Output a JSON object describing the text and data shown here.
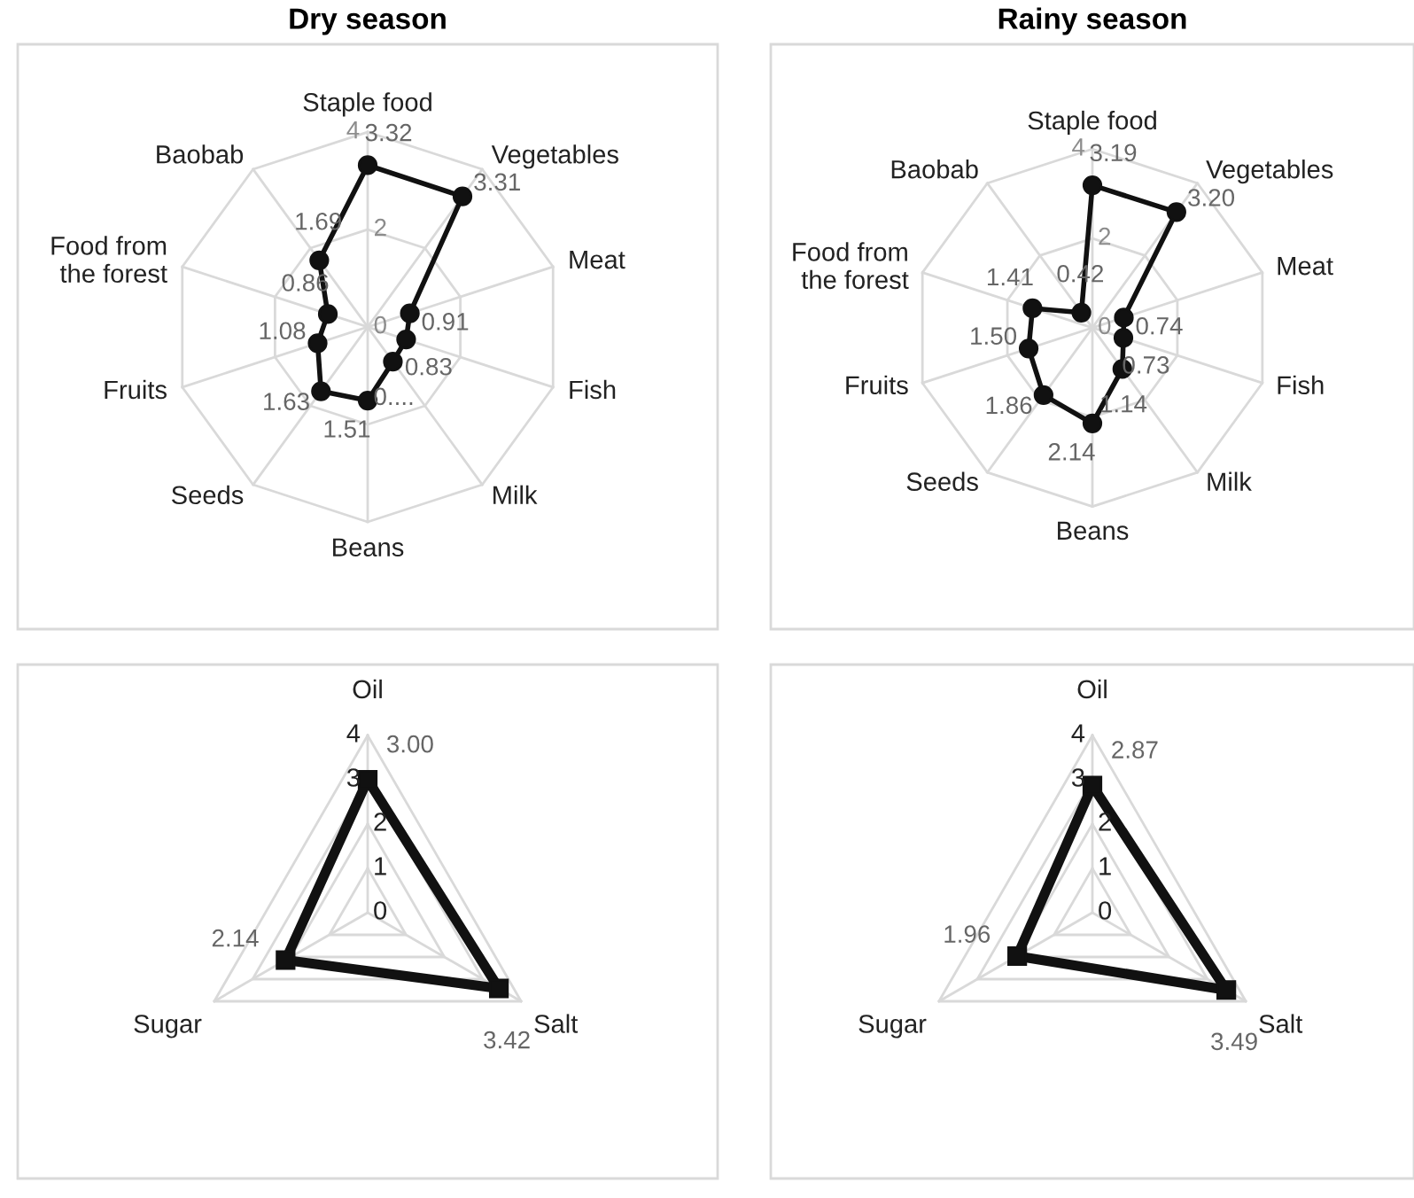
{
  "chart_data": [
    {
      "type": "radar",
      "title": "Dry season",
      "categories": [
        "Staple food",
        "Vegetables",
        "Meat",
        "Fish",
        "Milk",
        "Beans",
        "Seeds",
        "Fruits",
        "Food from\nthe forest",
        "Baobab"
      ],
      "ylim": [
        0,
        4
      ],
      "yticks": [
        0,
        2,
        4
      ],
      "grid": true,
      "series": [
        {
          "color": "#111111",
          "line_style": "solid",
          "marker": "circle",
          "values": [
            3.32,
            3.31,
            0.91,
            0.83,
            0.88,
            1.51,
            1.63,
            1.08,
            0.86,
            1.69
          ],
          "value_labels": [
            "3.32",
            "3.31",
            "0.91",
            "0.83",
            "0....",
            "1.51",
            "1.63",
            "1.08",
            "0.86",
            "1.69"
          ]
        }
      ]
    },
    {
      "type": "radar",
      "title": "Rainy season",
      "categories": [
        "Staple food",
        "Vegetables",
        "Meat",
        "Fish",
        "Milk",
        "Beans",
        "Seeds",
        "Fruits",
        "Food from\nthe forest",
        "Baobab"
      ],
      "ylim": [
        0,
        4
      ],
      "yticks": [
        0,
        2,
        4
      ],
      "grid": true,
      "series": [
        {
          "color": "#111111",
          "line_style": "solid",
          "marker": "circle",
          "values": [
            3.19,
            3.2,
            0.74,
            0.73,
            1.14,
            2.14,
            1.86,
            1.5,
            1.41,
            0.42
          ],
          "value_labels": [
            "3.19",
            "3.20",
            "0.74",
            "0.73",
            "1.14",
            "2.14",
            "1.86",
            "1.50",
            "1.41",
            "0.42"
          ]
        }
      ]
    },
    {
      "type": "radar",
      "categories": [
        "Oil",
        "Salt",
        "Sugar"
      ],
      "ylim": [
        0,
        4
      ],
      "yticks": [
        0,
        1,
        2,
        3,
        4
      ],
      "grid": true,
      "series": [
        {
          "color": "#111111",
          "line_style": "solid",
          "marker": "square",
          "values": [
            3.0,
            3.42,
            2.14
          ],
          "value_labels": [
            "3.00",
            "3.42",
            "2.14"
          ]
        }
      ]
    },
    {
      "type": "radar",
      "categories": [
        "Oil",
        "Salt",
        "Sugar"
      ],
      "ylim": [
        0,
        4
      ],
      "yticks": [
        0,
        1,
        2,
        3,
        4
      ],
      "grid": true,
      "series": [
        {
          "color": "#111111",
          "line_style": "solid",
          "marker": "square",
          "values": [
            2.87,
            3.49,
            1.96
          ],
          "value_labels": [
            "2.87",
            "3.49",
            "1.96"
          ]
        }
      ]
    }
  ]
}
